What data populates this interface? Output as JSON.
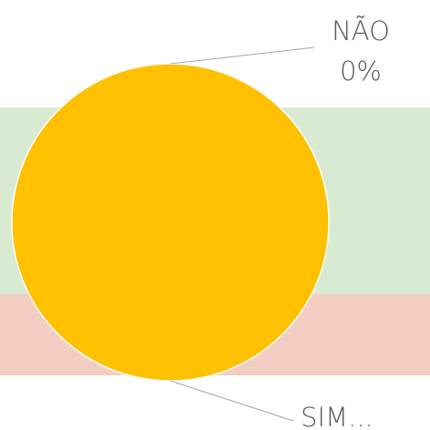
{
  "chart_data": {
    "type": "pie",
    "categories": [
      "NÃO",
      "SIM..."
    ],
    "values": [
      0,
      100
    ],
    "value_labels": [
      "0%",
      null
    ],
    "colors": [
      "#4472c4",
      "#ffc000"
    ]
  }
}
